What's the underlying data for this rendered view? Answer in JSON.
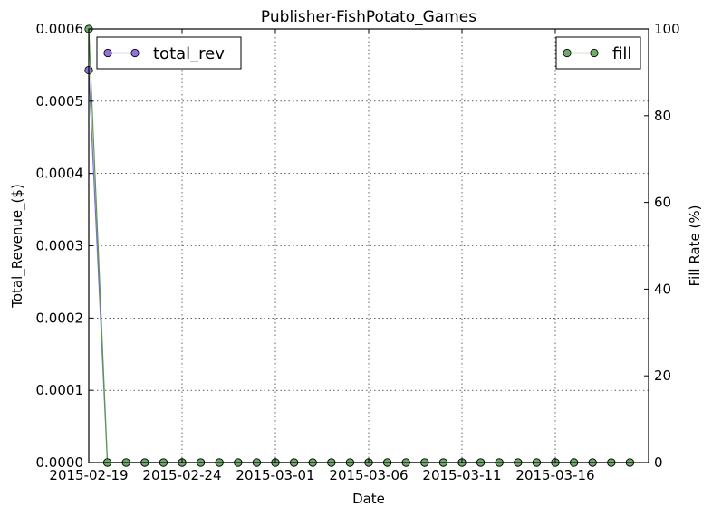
{
  "chart_data": {
    "type": "line",
    "title": "Publisher-FishPotato_Games",
    "xlabel": "Date",
    "ylabel": "Total_Revenue_($)",
    "y2label": "Fill Rate (%)",
    "x_tick_labels": [
      "2015-02-19",
      "2015-02-24",
      "2015-03-01",
      "2015-03-06",
      "2015-03-11",
      "2015-03-16"
    ],
    "y_tick_labels": [
      "0.0000",
      "0.0001",
      "0.0002",
      "0.0003",
      "0.0004",
      "0.0005",
      "0.0006"
    ],
    "y2_tick_labels": [
      "0",
      "20",
      "40",
      "60",
      "80",
      "100"
    ],
    "ylim": [
      0,
      0.0006
    ],
    "y2lim": [
      0,
      100
    ],
    "xlim": [
      "2015-02-19",
      "2015-03-21"
    ],
    "grid": true,
    "x": [
      "2015-02-19",
      "2015-02-20",
      "2015-02-21",
      "2015-02-22",
      "2015-02-23",
      "2015-02-24",
      "2015-02-25",
      "2015-02-26",
      "2015-02-27",
      "2015-02-28",
      "2015-03-01",
      "2015-03-02",
      "2015-03-03",
      "2015-03-04",
      "2015-03-05",
      "2015-03-06",
      "2015-03-07",
      "2015-03-08",
      "2015-03-09",
      "2015-03-10",
      "2015-03-11",
      "2015-03-12",
      "2015-03-13",
      "2015-03-14",
      "2015-03-15",
      "2015-03-16",
      "2015-03-17",
      "2015-03-18",
      "2015-03-19",
      "2015-03-20"
    ],
    "series": [
      {
        "name": "total_rev",
        "axis": "left",
        "color": "#7b68d9",
        "marker_color": "#9370db",
        "legend_position": "top-left",
        "values": [
          0.000543,
          0,
          0,
          0,
          0,
          0,
          0,
          0,
          0,
          0,
          0,
          0,
          0,
          0,
          0,
          0,
          0,
          0,
          0,
          0,
          0,
          0,
          0,
          0,
          0,
          0,
          0,
          0,
          0,
          0
        ]
      },
      {
        "name": "fill",
        "axis": "right",
        "color": "#5a9a4a",
        "marker_color": "#6fa96b",
        "legend_position": "top-right",
        "values": [
          100,
          0,
          0,
          0,
          0,
          0,
          0,
          0,
          0,
          0,
          0,
          0,
          0,
          0,
          0,
          0,
          0,
          0,
          0,
          0,
          0,
          0,
          0,
          0,
          0,
          0,
          0,
          0,
          0,
          0
        ]
      }
    ]
  }
}
